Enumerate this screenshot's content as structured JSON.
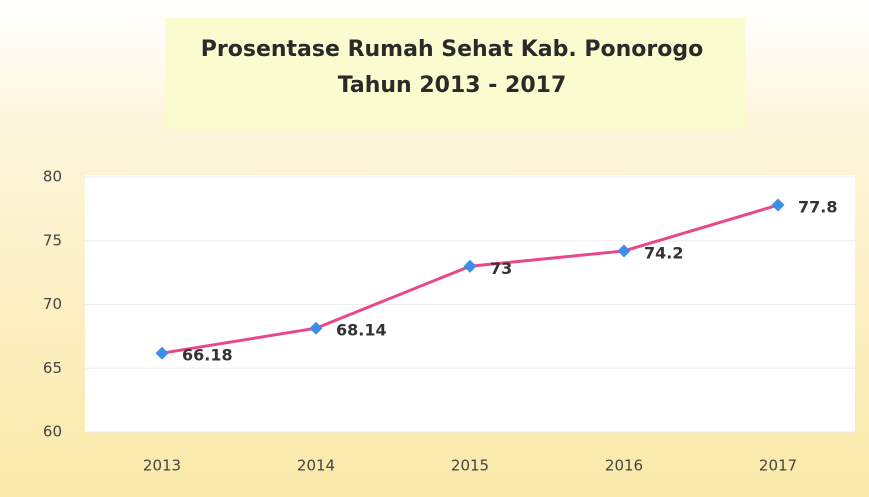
{
  "chart_data": {
    "type": "line",
    "title": [
      "Prosentase Rumah Sehat Kab. Ponorogo",
      "Tahun 2013 - 2017"
    ],
    "categories": [
      "2013",
      "2014",
      "2015",
      "2016",
      "2017"
    ],
    "series": [
      {
        "color": "#e8488a",
        "marker_color": "#3d8ee6",
        "values": [
          66.18,
          68.14,
          73,
          74.2,
          77.8
        ]
      }
    ],
    "ylim": [
      60,
      80
    ],
    "yticks": [
      60,
      65,
      70,
      75,
      80
    ],
    "grid": true
  }
}
